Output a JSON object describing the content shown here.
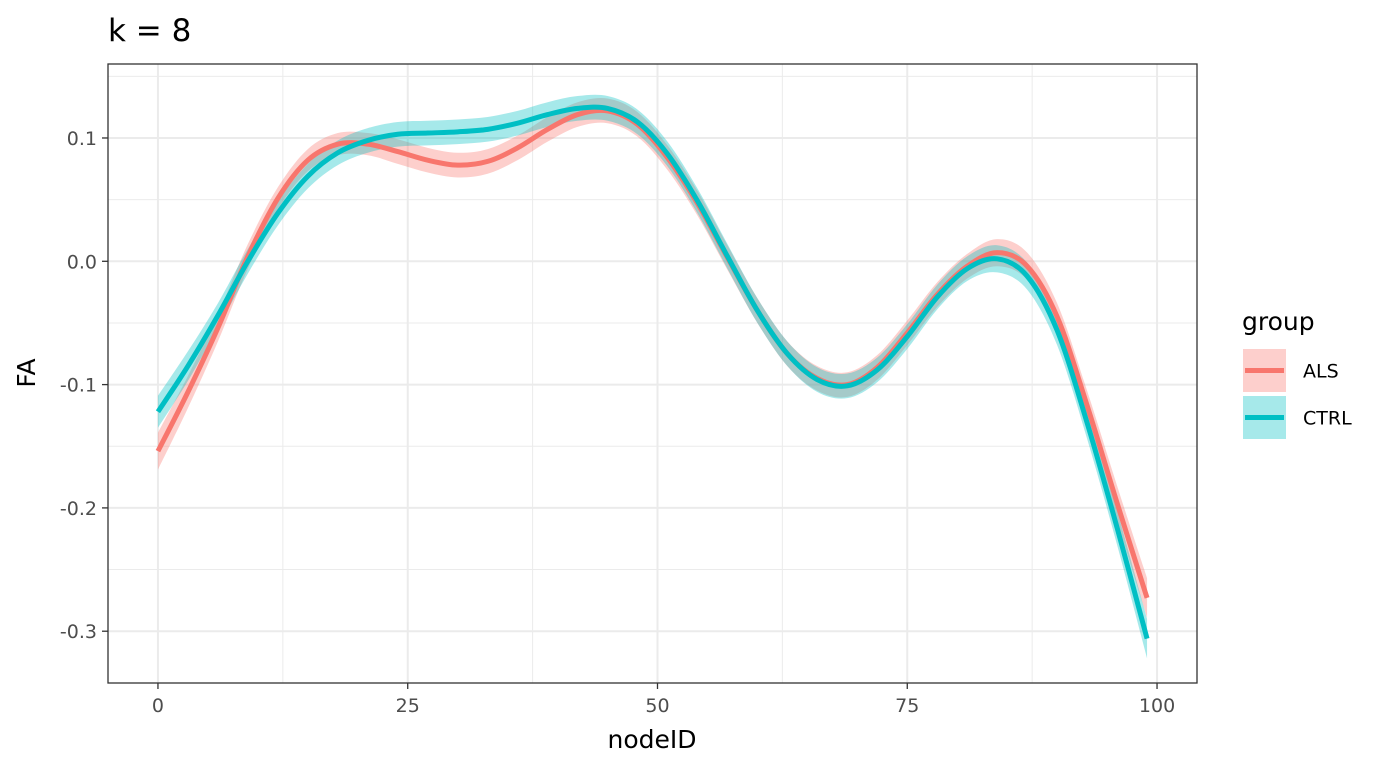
{
  "chart_data": {
    "type": "line",
    "title": "k = 8",
    "xlabel": "nodeID",
    "ylabel": "FA",
    "xlim": [
      -5,
      104
    ],
    "ylim": [
      -0.342,
      0.16
    ],
    "x_ticks": [
      0,
      25,
      50,
      75,
      100
    ],
    "x_tick_labels": [
      "0",
      "25",
      "50",
      "75",
      "100"
    ],
    "y_ticks": [
      -0.3,
      -0.2,
      -0.1,
      0.0,
      0.1
    ],
    "y_tick_labels": [
      "-0.3",
      "-0.2",
      "-0.1",
      "0.0",
      "0.1"
    ],
    "grid": true,
    "legend": {
      "title": "group",
      "position": "right"
    },
    "series": [
      {
        "name": "ALS",
        "color": "#F8766D",
        "ribbon_color": "#F8766D",
        "x": [
          0,
          3,
          6,
          9,
          12,
          15,
          18,
          21,
          24,
          27,
          30,
          33,
          36,
          39,
          42,
          45,
          48,
          51,
          54,
          57,
          60,
          63,
          66,
          69,
          72,
          75,
          78,
          81,
          84,
          87,
          90,
          93,
          96,
          99
        ],
        "y": [
          -0.154,
          -0.106,
          -0.054,
          0.004,
          0.051,
          0.082,
          0.095,
          0.095,
          0.089,
          0.082,
          0.078,
          0.081,
          0.092,
          0.107,
          0.119,
          0.122,
          0.111,
          0.084,
          0.047,
          0.003,
          -0.04,
          -0.075,
          -0.095,
          -0.1,
          -0.086,
          -0.058,
          -0.027,
          -0.004,
          0.007,
          -0.004,
          -0.045,
          -0.117,
          -0.196,
          -0.273
        ],
        "lower": [
          -0.169,
          -0.119,
          -0.065,
          -0.006,
          0.042,
          0.073,
          0.086,
          0.086,
          0.079,
          0.072,
          0.068,
          0.071,
          0.082,
          0.097,
          0.109,
          0.112,
          0.101,
          0.074,
          0.037,
          -0.007,
          -0.05,
          -0.085,
          -0.105,
          -0.11,
          -0.096,
          -0.068,
          -0.037,
          -0.014,
          -0.004,
          -0.015,
          -0.056,
          -0.129,
          -0.21,
          -0.289
        ],
        "upper": [
          -0.139,
          -0.093,
          -0.043,
          0.014,
          0.06,
          0.091,
          0.104,
          0.104,
          0.099,
          0.092,
          0.088,
          0.091,
          0.102,
          0.117,
          0.129,
          0.132,
          0.121,
          0.094,
          0.057,
          0.013,
          -0.03,
          -0.065,
          -0.085,
          -0.09,
          -0.076,
          -0.048,
          -0.017,
          0.006,
          0.018,
          0.007,
          -0.034,
          -0.105,
          -0.182,
          -0.257
        ]
      },
      {
        "name": "CTRL",
        "color": "#00BFC4",
        "ribbon_color": "#00BFC4",
        "x": [
          0,
          3,
          6,
          9,
          12,
          15,
          18,
          21,
          24,
          27,
          30,
          33,
          36,
          39,
          42,
          45,
          48,
          51,
          54,
          57,
          60,
          63,
          66,
          69,
          72,
          75,
          78,
          81,
          84,
          87,
          90,
          93,
          96,
          99
        ],
        "y": [
          -0.122,
          -0.085,
          -0.044,
          0.0,
          0.039,
          0.069,
          0.088,
          0.098,
          0.103,
          0.104,
          0.105,
          0.107,
          0.112,
          0.119,
          0.124,
          0.124,
          0.113,
          0.087,
          0.049,
          0.004,
          -0.04,
          -0.075,
          -0.096,
          -0.101,
          -0.088,
          -0.061,
          -0.029,
          -0.006,
          0.002,
          -0.012,
          -0.056,
          -0.131,
          -0.216,
          -0.306
        ],
        "lower": [
          -0.135,
          -0.097,
          -0.054,
          -0.01,
          0.029,
          0.059,
          0.078,
          0.088,
          0.093,
          0.094,
          0.095,
          0.097,
          0.102,
          0.109,
          0.114,
          0.114,
          0.103,
          0.077,
          0.039,
          -0.006,
          -0.05,
          -0.085,
          -0.106,
          -0.111,
          -0.098,
          -0.071,
          -0.039,
          -0.016,
          -0.009,
          -0.023,
          -0.068,
          -0.144,
          -0.23,
          -0.322
        ],
        "upper": [
          -0.109,
          -0.073,
          -0.034,
          0.01,
          0.049,
          0.079,
          0.098,
          0.108,
          0.113,
          0.114,
          0.115,
          0.117,
          0.122,
          0.129,
          0.134,
          0.134,
          0.123,
          0.097,
          0.059,
          0.014,
          -0.03,
          -0.065,
          -0.086,
          -0.091,
          -0.078,
          -0.051,
          -0.019,
          0.004,
          0.013,
          -0.001,
          -0.044,
          -0.118,
          -0.202,
          -0.29
        ]
      }
    ]
  }
}
